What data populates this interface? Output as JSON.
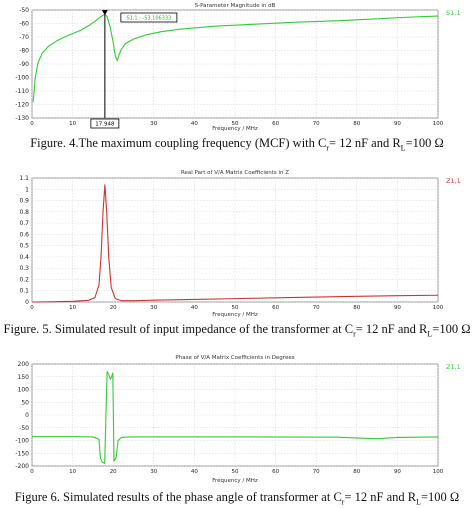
{
  "chart_data": [
    {
      "type": "line",
      "title": "S-Parameter Magnitude in dB",
      "xlabel": "Frequency / MHz",
      "ylabel": "",
      "xlim": [
        0,
        100
      ],
      "ylim": [
        -130,
        -50
      ],
      "yticks": [
        "-50",
        "-60",
        "-70",
        "-80",
        "-90",
        "-100",
        "-110",
        "-120",
        "-130"
      ],
      "legend": "S1,1",
      "legend_position": "top-right",
      "marker_x_label": "17.948",
      "marker_box_label": "S1,1 : -53.106333",
      "color": "#33cc33",
      "grid": true,
      "series": [
        {
          "name": "S1,1",
          "x": [
            0.3,
            0.8,
            1.5,
            2.5,
            4,
            6,
            8,
            10,
            12,
            14,
            15.5,
            16.5,
            17.3,
            17.95,
            18.5,
            19.2,
            20,
            20.5,
            21,
            21.5,
            22,
            23,
            25,
            28,
            32,
            37,
            45,
            55,
            65,
            75,
            85,
            95,
            100
          ],
          "y": [
            -118,
            -100,
            -89,
            -82,
            -77,
            -73,
            -70,
            -67.5,
            -65,
            -61.5,
            -58.5,
            -56,
            -54.2,
            -53.1,
            -55,
            -62,
            -74,
            -84,
            -87.5,
            -83,
            -79,
            -75,
            -71.5,
            -68.5,
            -66,
            -64,
            -62,
            -60.5,
            -59,
            -58,
            -56.5,
            -55,
            -54.5
          ]
        }
      ]
    },
    {
      "type": "line",
      "title": "Real Part of V/A Matrix Coefficients in Z",
      "xlabel": "Frequency / MHz",
      "ylabel": "",
      "xlim": [
        0,
        100
      ],
      "ylim": [
        0,
        1.1
      ],
      "yticks": [
        "1.1",
        "1",
        "0.9",
        "0.8",
        "0.7",
        "0.6",
        "0.5",
        "0.4",
        "0.3",
        "0.2",
        "0.1",
        "0"
      ],
      "legend": "Z1,1",
      "legend_position": "top-right",
      "color": "#cc3333",
      "grid": true,
      "series": [
        {
          "name": "Z1,1",
          "x": [
            0,
            5,
            10,
            14,
            15.5,
            16.5,
            17,
            17.5,
            17.95,
            18.4,
            18.9,
            19.5,
            20.5,
            22,
            25,
            30,
            40,
            50,
            60,
            70,
            80,
            90,
            100
          ],
          "y": [
            0,
            0.002,
            0.006,
            0.015,
            0.04,
            0.15,
            0.4,
            0.8,
            1.04,
            0.8,
            0.4,
            0.13,
            0.03,
            0.012,
            0.012,
            0.016,
            0.023,
            0.03,
            0.037,
            0.044,
            0.05,
            0.056,
            0.06
          ]
        }
      ]
    },
    {
      "type": "line",
      "title": "Phase of V/A Matrix Coefficients in Degrees",
      "xlabel": "Frequency / MHz",
      "ylabel": "",
      "xlim": [
        0,
        100
      ],
      "ylim": [
        -200,
        200
      ],
      "yticks": [
        "200",
        "150",
        "100",
        "50",
        "0",
        "-50",
        "-100",
        "-150",
        "-200"
      ],
      "legend": "Z1,1",
      "legend_position": "top-right",
      "color": "#33cc33",
      "grid": true,
      "series": [
        {
          "name": "Z1,1",
          "x": [
            0,
            10,
            15,
            16.5,
            16.8,
            17,
            17.3,
            17.9,
            18.5,
            19,
            19.3,
            19.6,
            19.9,
            20.2,
            20.5,
            20.8,
            21.2,
            22,
            24,
            30,
            50,
            75,
            85,
            90,
            100
          ],
          "y": [
            -85,
            -85,
            -86,
            -95,
            -160,
            -175,
            -185,
            -190,
            170,
            155,
            140,
            150,
            165,
            -180,
            -175,
            -160,
            -100,
            -88,
            -86,
            -86,
            -86,
            -87,
            -93,
            -88,
            -86
          ]
        }
      ]
    }
  ],
  "xticks": [
    "0",
    "10",
    "20",
    "30",
    "40",
    "50",
    "60",
    "70",
    "80",
    "90",
    "100"
  ],
  "captions": {
    "fig4": {
      "pre": "Figure. 4.The maximum coupling frequency (MCF) with C",
      "sub1": "r",
      "mid": "= 12 nF and R",
      "sub2": "L",
      "post": "=100 Ω"
    },
    "fig5": {
      "pre": "Figure. 5. Simulated result of input impedance of the transformer at C",
      "sub1": "r",
      "mid": "= 12 nF and R",
      "sub2": "L",
      "post": "=100 Ω"
    },
    "fig6": {
      "pre": "Figure 6. Simulated results of the phase angle of transformer at C",
      "sub1": "r",
      "mid": "= 12 nF and R",
      "sub2": "L",
      "post": "=100 Ω"
    }
  }
}
